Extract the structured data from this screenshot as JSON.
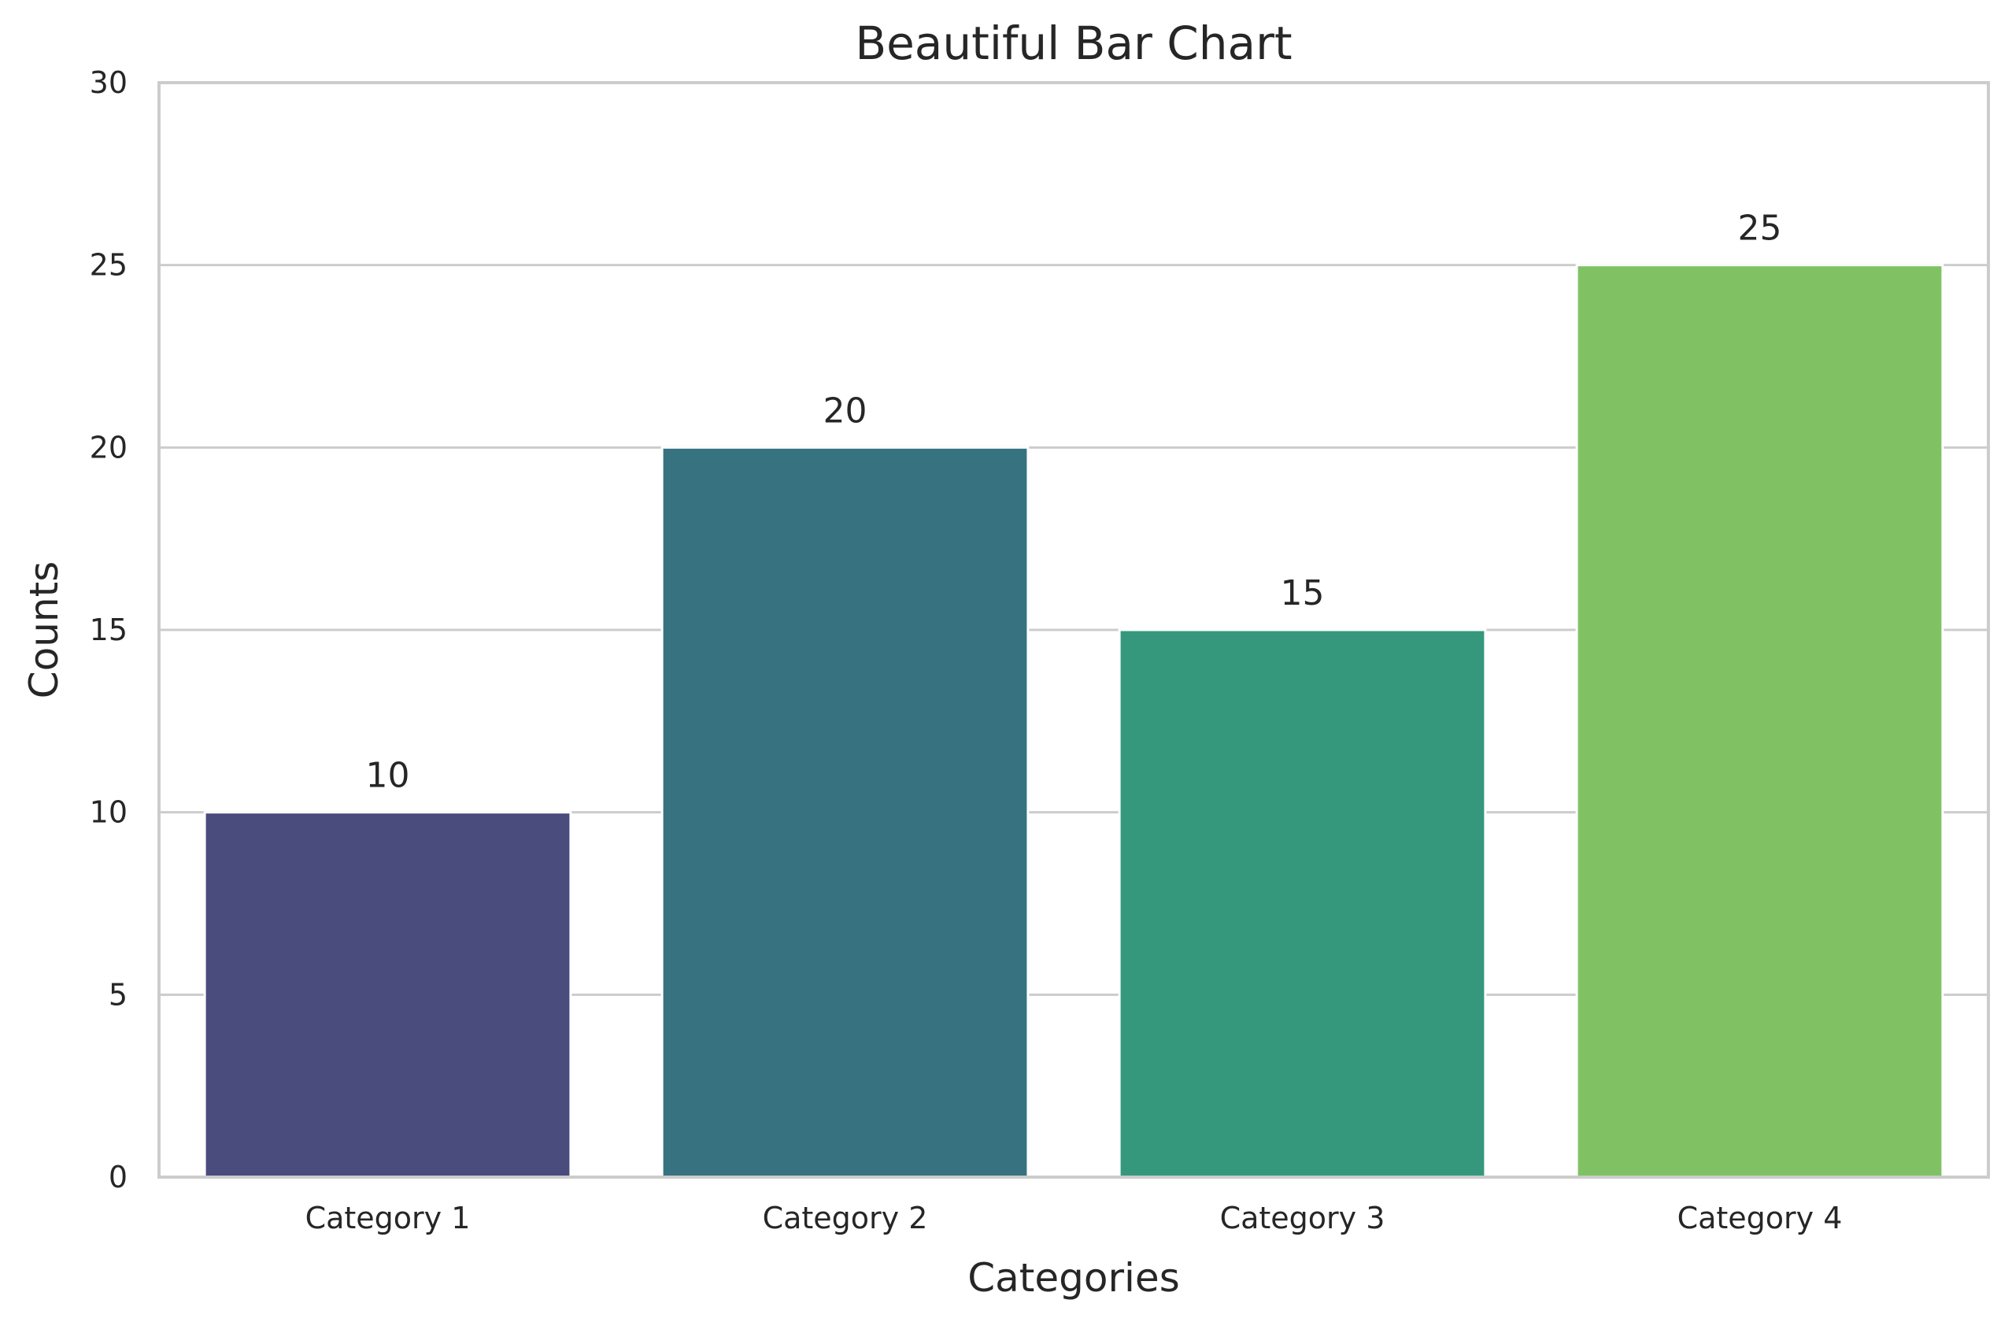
{
  "chart_data": {
    "type": "bar",
    "title": "Beautiful Bar Chart",
    "xlabel": "Categories",
    "ylabel": "Counts",
    "categories": [
      "Category 1",
      "Category 2",
      "Category 3",
      "Category 4"
    ],
    "values": [
      10,
      20,
      15,
      25
    ],
    "data_labels": [
      "10",
      "20",
      "15",
      "25"
    ],
    "colors": [
      "#4a4c7d",
      "#377280",
      "#35987c",
      "#80c263"
    ],
    "ylim": [
      0,
      30
    ],
    "yticks": [
      0,
      5,
      10,
      15,
      20,
      25,
      30
    ],
    "grid": true,
    "legend": "none"
  }
}
